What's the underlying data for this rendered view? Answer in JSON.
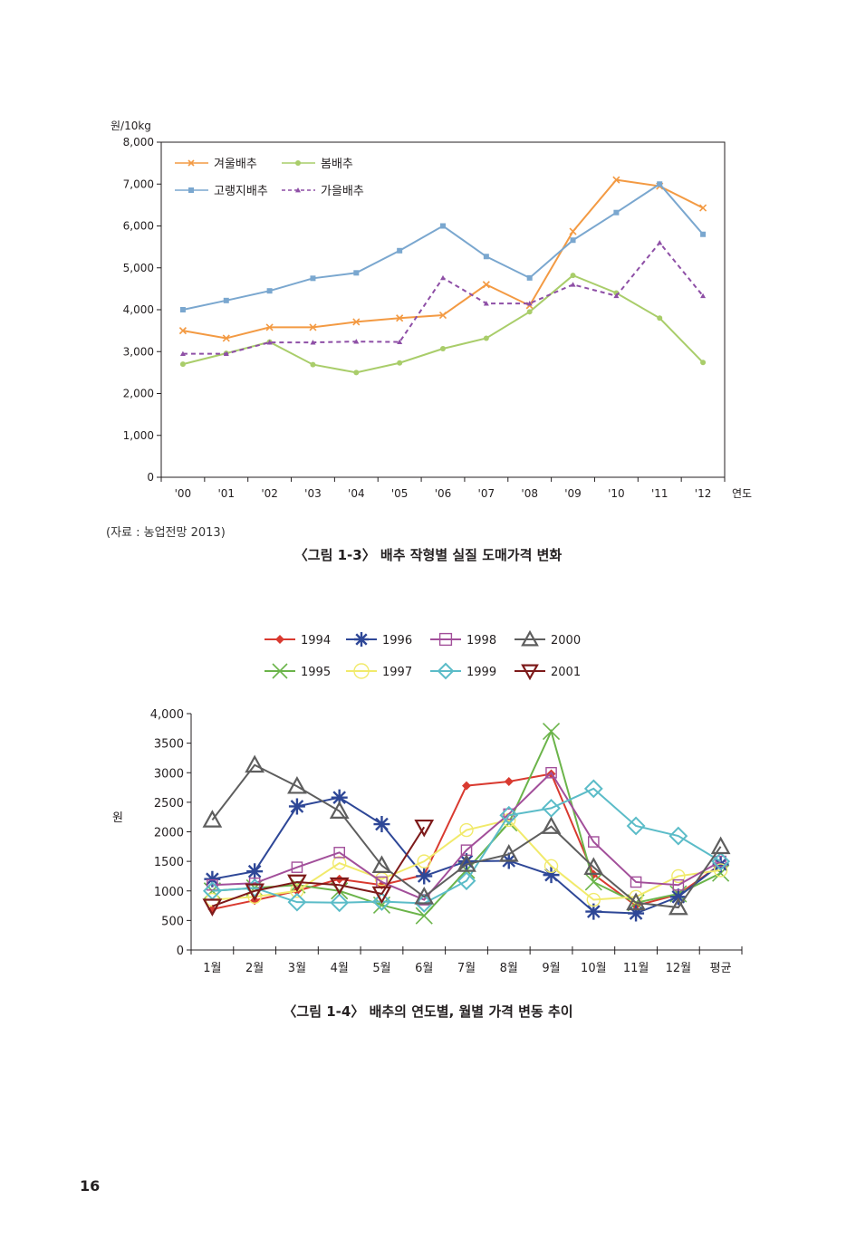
{
  "chart_data": [
    {
      "type": "line",
      "unit_label": "원/10kg",
      "xlabel": "연도",
      "categories": [
        "'00",
        "'01",
        "'02",
        "'03",
        "'04",
        "'05",
        "'06",
        "'07",
        "'08",
        "'09",
        "'10",
        "'11",
        "'12"
      ],
      "y_ticks": [
        "0",
        "1,000",
        "2,000",
        "3,000",
        "4,000",
        "5,000",
        "6,000",
        "7,000",
        "8,000"
      ],
      "ylim": [
        0,
        8000
      ],
      "legend_position": "top-left",
      "series": [
        {
          "name": "겨울배추",
          "color": "#f39a43",
          "marker": "x",
          "dash": false,
          "values": [
            3500,
            3320,
            3580,
            3580,
            3710,
            3800,
            3870,
            4600,
            4100,
            5870,
            7100,
            6950,
            6430
          ]
        },
        {
          "name": "봄배추",
          "color": "#a9cd6a",
          "marker": "circle",
          "dash": false,
          "values": [
            2700,
            2960,
            3230,
            2690,
            2500,
            2730,
            3070,
            3320,
            3950,
            4820,
            4400,
            3800,
            2740
          ]
        },
        {
          "name": "고랭지배추",
          "color": "#7aa7cf",
          "marker": "square",
          "dash": false,
          "values": [
            4000,
            4220,
            4450,
            4750,
            4880,
            5410,
            6000,
            5270,
            4760,
            5660,
            6320,
            7000,
            5800
          ]
        },
        {
          "name": "가을배추",
          "color": "#8e4fa6",
          "marker": "triangle",
          "dash": true,
          "values": [
            2950,
            2950,
            3220,
            3220,
            3240,
            3230,
            4760,
            4150,
            4150,
            4600,
            4330,
            5600,
            4330
          ]
        }
      ]
    },
    {
      "type": "line",
      "ylabel": "원",
      "categories": [
        "1월",
        "2월",
        "3월",
        "4월",
        "5월",
        "6월",
        "7월",
        "8월",
        "9월",
        "10월",
        "11월",
        "12월",
        "평균"
      ],
      "y_ticks": [
        "0",
        "500",
        "1000",
        "1500",
        "2000",
        "2500",
        "3000",
        "3500",
        "4,000"
      ],
      "ylim": [
        0,
        4000
      ],
      "legend_position": "top",
      "series": [
        {
          "name": "1994",
          "color": "#d93a30",
          "marker": "diamond-filled",
          "values": [
            690,
            840,
            1000,
            1200,
            1100,
            1270,
            2780,
            2850,
            2980,
            1280,
            750,
            940,
            1450
          ]
        },
        {
          "name": "1995",
          "color": "#6bb44a",
          "marker": "x",
          "values": [
            1000,
            1050,
            1100,
            1000,
            760,
            580,
            1350,
            2150,
            3700,
            1150,
            800,
            950,
            1300
          ]
        },
        {
          "name": "1996",
          "color": "#2e4797",
          "marker": "asterisk",
          "values": [
            1200,
            1330,
            2430,
            2580,
            2130,
            1250,
            1500,
            1510,
            1270,
            650,
            620,
            900,
            1450
          ]
        },
        {
          "name": "1997",
          "color": "#f1ea6b",
          "marker": "circle-open",
          "values": [
            850,
            900,
            1000,
            1470,
            1200,
            1500,
            2030,
            2200,
            1420,
            850,
            900,
            1250,
            1350
          ]
        },
        {
          "name": "1998",
          "color": "#a24f9a",
          "marker": "square-open",
          "values": [
            1100,
            1130,
            1400,
            1650,
            1150,
            850,
            1690,
            2300,
            3000,
            1830,
            1150,
            1100,
            1500
          ]
        },
        {
          "name": "1999",
          "color": "#5bbcc8",
          "marker": "diamond-open",
          "values": [
            1000,
            1050,
            810,
            800,
            820,
            790,
            1170,
            2280,
            2400,
            2730,
            2100,
            1930,
            1500
          ]
        },
        {
          "name": "2000",
          "color": "#5e5e5e",
          "marker": "triangle-open",
          "values": [
            2200,
            3130,
            2770,
            2350,
            1430,
            900,
            1450,
            1620,
            2090,
            1400,
            800,
            720,
            1750
          ]
        },
        {
          "name": "2001",
          "color": "#7d1a1a",
          "marker": "triangle-down-open",
          "values": [
            740,
            1000,
            1150,
            1100,
            950,
            2080,
            null,
            null,
            null,
            null,
            null,
            null,
            null
          ]
        }
      ]
    }
  ],
  "source": "(자료 : 농업전망 2013)",
  "caption1": "〈그림 1-3〉 배추 작형별 실질 도매가격 변화",
  "caption2": "〈그림 1-4〉 배추의 연도별, 월별 가격 변동 추이",
  "page_number": "16"
}
